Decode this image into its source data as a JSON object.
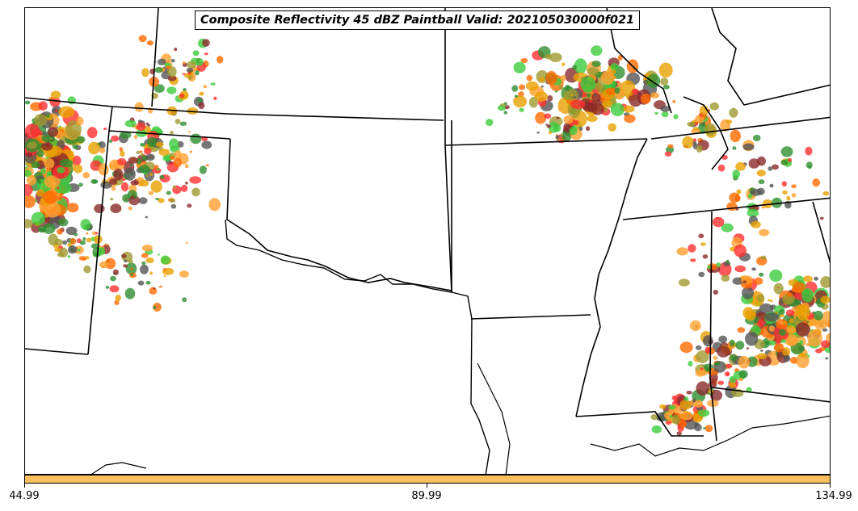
{
  "title": "Composite Reflectivity 45 dBZ Paintball Valid: 202105030000f021",
  "colorbar": {
    "color": "#fdbf5e",
    "ticks": [
      "44.99",
      "89.99",
      "134.99"
    ]
  },
  "palette": [
    "#ff3030",
    "#ff6a00",
    "#ffa030",
    "#3dcc3d",
    "#2f8f2f",
    "#8b2a2a",
    "#a09a30",
    "#555555",
    "#e8a000"
  ],
  "map": {
    "projection": "Lambert Conformal",
    "region": "Southern Plains / Lower Mississippi Valley, USA",
    "boundaries": [
      "state-borders",
      "coastline"
    ]
  }
}
